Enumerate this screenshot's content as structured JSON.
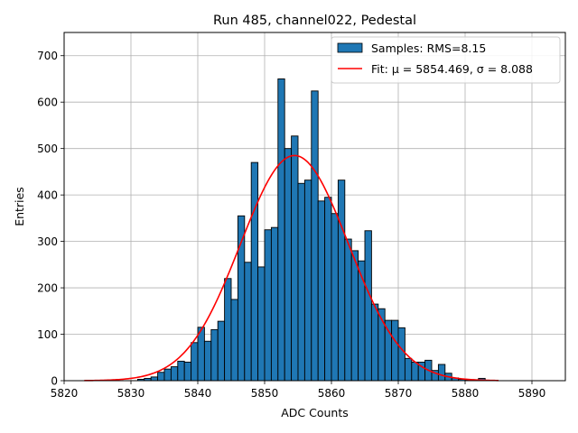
{
  "chart_data": {
    "type": "bar",
    "title": "Run 485, channel022, Pedestal",
    "xlabel": "ADC Counts",
    "ylabel": "Entries",
    "xlim": [
      5820,
      5895
    ],
    "ylim": [
      0,
      750
    ],
    "xticks": [
      "5820",
      "5830",
      "5840",
      "5850",
      "5860",
      "5870",
      "5880",
      "5890"
    ],
    "yticks": [
      "0",
      "100",
      "200",
      "300",
      "400",
      "500",
      "600",
      "700"
    ],
    "grid": true,
    "legend_position": "top-right",
    "bin_width": 1,
    "bins_start": [
      5823,
      5824,
      5825,
      5826,
      5827,
      5828,
      5829,
      5830,
      5831,
      5832,
      5833,
      5834,
      5835,
      5836,
      5837,
      5838,
      5839,
      5840,
      5841,
      5842,
      5843,
      5844,
      5845,
      5846,
      5847,
      5848,
      5849,
      5850,
      5851,
      5852,
      5853,
      5854,
      5855,
      5856,
      5857,
      5858,
      5859,
      5860,
      5861,
      5862,
      5863,
      5864,
      5865,
      5866,
      5867,
      5868,
      5869,
      5870,
      5871,
      5872,
      5873,
      5874,
      5875,
      5876,
      5877,
      5878,
      5879,
      5880,
      5881,
      5882,
      5883,
      5884,
      5885
    ],
    "counts": [
      0,
      0,
      0,
      0,
      0,
      0,
      0,
      0,
      3,
      5,
      8,
      18,
      25,
      30,
      42,
      40,
      82,
      115,
      85,
      110,
      128,
      220,
      175,
      355,
      255,
      470,
      245,
      325,
      330,
      650,
      500,
      527,
      425,
      432,
      624,
      387,
      395,
      360,
      432,
      305,
      280,
      258,
      323,
      165,
      155,
      130,
      130,
      114,
      48,
      40,
      40,
      44,
      22,
      35,
      16,
      6,
      3,
      2,
      0,
      5,
      0,
      0,
      0
    ],
    "series": [
      {
        "name": "Samples: RMS=8.15",
        "type": "histogram",
        "color": "#1f77b4"
      },
      {
        "name": "Fit: μ = 5854.469, σ = 8.088",
        "type": "line",
        "color": "#ff0000"
      }
    ],
    "fit": {
      "mu": 5854.469,
      "sigma": 8.088,
      "peak": 485,
      "x_range": [
        5823,
        5885
      ]
    }
  }
}
